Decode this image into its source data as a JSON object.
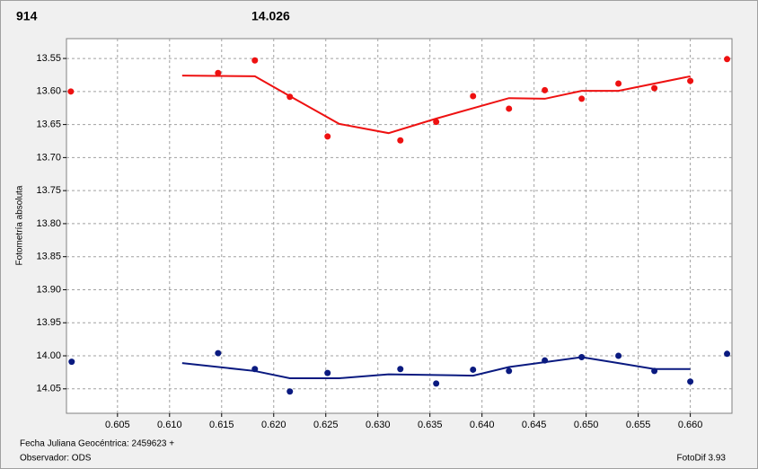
{
  "chart_data": {
    "type": "scatter",
    "annotations": [
      {
        "text": "914",
        "color": "#e8161c"
      },
      {
        "text": "14.026",
        "color": "#10207a"
      }
    ],
    "y_label": "Fotometría absoluta",
    "x_label": "Fecha Juliana Geocéntrica: 2459623 +",
    "observer": "Observador: ODS",
    "footer_right": "FotoDif 3.93",
    "xlim": [
      0.6001,
      0.664
    ],
    "ylim": [
      13.52,
      14.087
    ],
    "y_reversed": true,
    "grid": true,
    "xticks": [
      0.605,
      {
        "value": 0.61,
        "label": "0.610"
      },
      0.615,
      {
        "value": 0.62,
        "label": "0.620"
      },
      0.625,
      {
        "value": 0.63,
        "label": "0.630"
      },
      0.635,
      {
        "value": 0.64,
        "label": "0.640"
      },
      0.645,
      {
        "value": 0.65,
        "label": "0.650"
      },
      0.655,
      {
        "value": 0.66,
        "label": "0.660"
      }
    ],
    "yticks": [
      13.55,
      {
        "value": 13.6,
        "label": "13.60"
      },
      13.65,
      {
        "value": 13.7,
        "label": "13.70"
      },
      13.75,
      {
        "value": 13.8,
        "label": "13.80"
      },
      13.85,
      {
        "value": 13.9,
        "label": "13.90"
      },
      13.95,
      {
        "value": 14,
        "label": "14.00"
      },
      14.05
    ],
    "series": [
      {
        "color": "#ee1111",
        "mode": "markers",
        "x": [
          0.60052,
          0.61466,
          0.61819,
          0.62155,
          0.62517,
          0.63216,
          0.6356,
          0.63914,
          0.64259,
          0.64603,
          0.64957,
          0.6531,
          0.65655,
          0.66,
          0.66353
        ],
        "values": [
          13.6,
          13.572,
          13.553,
          13.608,
          13.668,
          13.674,
          13.646,
          13.607,
          13.626,
          13.598,
          13.611,
          13.588,
          13.595,
          13.584,
          13.551
        ]
      },
      {
        "color": "#ee1111",
        "mode": "line",
        "x": [
          0.61121,
          0.61819,
          0.62155,
          0.62629,
          0.63103,
          0.6356,
          0.64259,
          0.64603,
          0.64957,
          0.6531,
          0.66
        ],
        "values": [
          13.576,
          13.577,
          13.607,
          13.649,
          13.663,
          13.641,
          13.61,
          13.611,
          13.599,
          13.599,
          13.577
        ]
      },
      {
        "color": "#0a1a80",
        "mode": "markers",
        "x": [
          0.6006,
          0.61466,
          0.61819,
          0.62155,
          0.62517,
          0.63216,
          0.6356,
          0.63914,
          0.64259,
          0.64603,
          0.64957,
          0.6531,
          0.65655,
          0.66,
          0.66353
        ],
        "values": [
          14.009,
          13.996,
          14.02,
          14.054,
          14.026,
          14.02,
          14.042,
          14.021,
          14.023,
          14.007,
          14.002,
          14,
          14.023,
          14.039,
          13.997
        ]
      },
      {
        "color": "#0a1a80",
        "mode": "line",
        "x": [
          0.61121,
          0.61819,
          0.62155,
          0.62629,
          0.63103,
          0.63914,
          0.64259,
          0.64957,
          0.6531,
          0.65655,
          0.66
        ],
        "values": [
          14.011,
          14.023,
          14.034,
          14.034,
          14.028,
          14.03,
          14.017,
          14.002,
          14.011,
          14.02,
          14.02
        ]
      }
    ]
  }
}
